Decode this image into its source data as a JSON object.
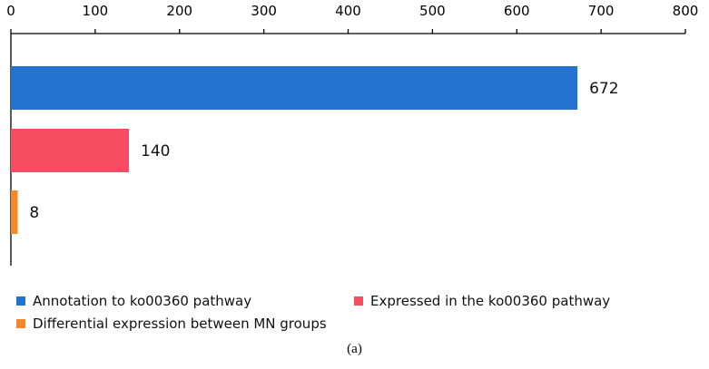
{
  "chart_data": {
    "type": "bar",
    "orientation": "horizontal",
    "x_axis_position": "top",
    "xlim": [
      0,
      800
    ],
    "xticks": [
      0,
      100,
      200,
      300,
      400,
      500,
      600,
      700,
      800
    ],
    "grid": false,
    "legend_position": "bottom",
    "series": [
      {
        "name": "Annotation to ko00360 pathway",
        "value": 672,
        "label": "672",
        "color": "#2472d0"
      },
      {
        "name": "Expressed in the ko00360 pathway",
        "value": 140,
        "label": "140",
        "color": "#f74d63"
      },
      {
        "name": "Differential expression between MN groups",
        "value": 8,
        "label": "8",
        "color": "#f4882c"
      }
    ]
  },
  "caption": "(a)"
}
